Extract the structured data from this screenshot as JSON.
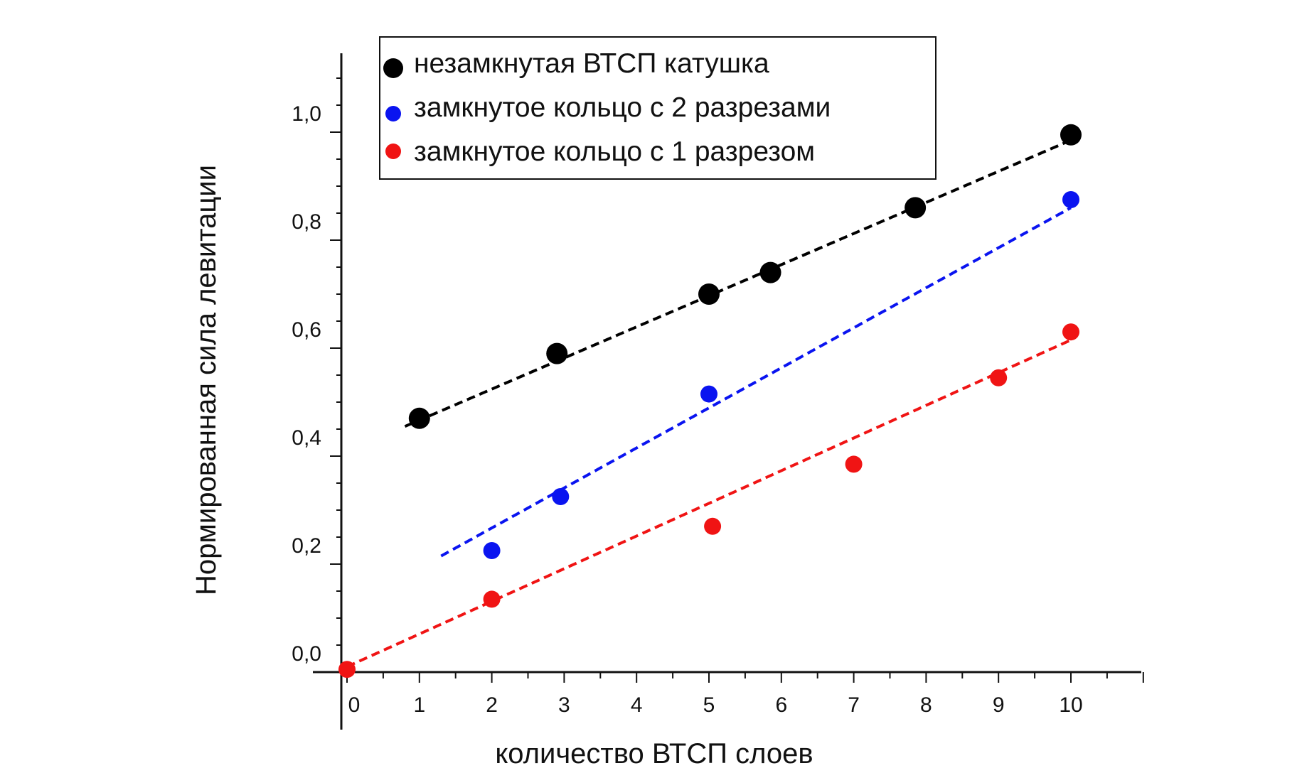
{
  "chart_data": {
    "type": "scatter",
    "xlabel": "количество ВТСП слоев",
    "ylabel": "Нормированная сила левитации",
    "xlim": [
      -0.2,
      11.0
    ],
    "ylim": [
      0.0,
      1.15
    ],
    "x_ticks": [
      "0",
      "1",
      "2",
      "3",
      "4",
      "5",
      "6",
      "7",
      "8",
      "9",
      "10"
    ],
    "y_ticks": [
      "0,0",
      "0,2",
      "0,4",
      "0,6",
      "0,8",
      "1,0"
    ],
    "y_tick_values": [
      0.0,
      0.2,
      0.4,
      0.6,
      0.8,
      1.0
    ],
    "grid": false,
    "legend_position": "top",
    "series": [
      {
        "name": "незамкнутая ВТСП катушка",
        "color": "#000000",
        "marker": "large-circle",
        "points": [
          [
            1.0,
            0.47
          ],
          [
            2.9,
            0.59
          ],
          [
            5.0,
            0.7
          ],
          [
            5.85,
            0.74
          ],
          [
            7.85,
            0.86
          ],
          [
            10.0,
            0.995
          ]
        ],
        "fit": [
          [
            0.8,
            0.455
          ],
          [
            10.0,
            0.985
          ]
        ]
      },
      {
        "name": "замкнутое кольцо с 2 разрезами",
        "color": "#0a14f0",
        "marker": "circle",
        "points": [
          [
            2.0,
            0.225
          ],
          [
            2.95,
            0.325
          ],
          [
            5.0,
            0.515
          ],
          [
            10.0,
            0.875
          ]
        ],
        "fit": [
          [
            1.3,
            0.215
          ],
          [
            10.0,
            0.86
          ]
        ]
      },
      {
        "name": "замкнутое кольцо с 1 разрезом",
        "color": "#f01414",
        "marker": "circle",
        "points": [
          [
            0.0,
            0.005
          ],
          [
            2.0,
            0.135
          ],
          [
            5.05,
            0.27
          ],
          [
            7.0,
            0.385
          ],
          [
            9.0,
            0.545
          ],
          [
            10.0,
            0.63
          ]
        ],
        "fit": [
          [
            0.0,
            0.01
          ],
          [
            10.0,
            0.615
          ]
        ]
      }
    ]
  }
}
